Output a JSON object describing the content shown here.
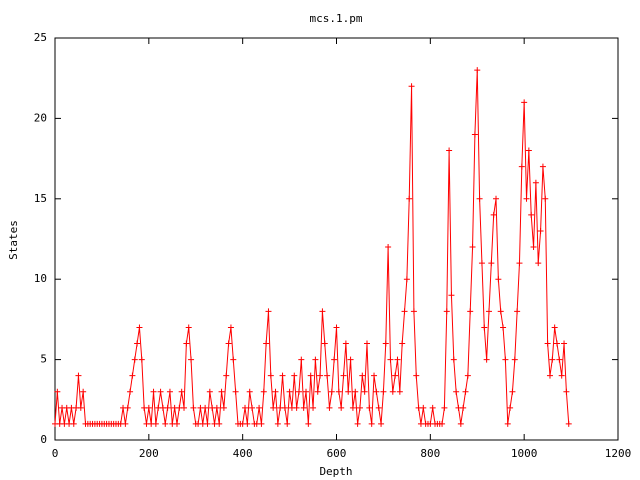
{
  "chart_data": {
    "type": "line",
    "title": "mcs.1.pm",
    "xlabel": "Depth",
    "ylabel": "States",
    "xlim": [
      0,
      1200
    ],
    "xticks": [
      0,
      200,
      400,
      600,
      800,
      1000,
      1200
    ],
    "ylim": [
      0,
      25
    ],
    "yticks": [
      0,
      5,
      10,
      15,
      20,
      25
    ],
    "series": [
      {
        "color": "#ff0000",
        "x": [
          0,
          5,
          10,
          15,
          20,
          25,
          30,
          35,
          40,
          45,
          50,
          55,
          60,
          65,
          70,
          75,
          80,
          85,
          90,
          95,
          100,
          105,
          110,
          115,
          120,
          125,
          130,
          135,
          140,
          145,
          150,
          155,
          160,
          165,
          170,
          175,
          180,
          185,
          190,
          195,
          200,
          205,
          210,
          215,
          220,
          225,
          230,
          235,
          240,
          245,
          250,
          255,
          260,
          265,
          270,
          275,
          280,
          285,
          290,
          295,
          300,
          305,
          310,
          315,
          320,
          325,
          330,
          335,
          340,
          345,
          350,
          355,
          360,
          365,
          370,
          375,
          380,
          385,
          390,
          395,
          400,
          405,
          410,
          415,
          420,
          425,
          430,
          435,
          440,
          445,
          450,
          455,
          460,
          465,
          470,
          475,
          480,
          485,
          490,
          495,
          500,
          505,
          510,
          515,
          520,
          525,
          530,
          535,
          540,
          545,
          550,
          555,
          560,
          565,
          570,
          575,
          580,
          585,
          590,
          595,
          600,
          605,
          610,
          615,
          620,
          625,
          630,
          635,
          640,
          645,
          650,
          655,
          660,
          665,
          670,
          675,
          680,
          685,
          690,
          695,
          700,
          705,
          710,
          715,
          720,
          725,
          730,
          735,
          740,
          745,
          750,
          755,
          760,
          765,
          770,
          775,
          780,
          785,
          790,
          795,
          800,
          805,
          810,
          815,
          820,
          825,
          830,
          835,
          840,
          845,
          850,
          855,
          860,
          865,
          870,
          875,
          880,
          885,
          890,
          895,
          900,
          905,
          910,
          915,
          920,
          925,
          930,
          935,
          940,
          945,
          950,
          955,
          960,
          965,
          970,
          975,
          980,
          985,
          990,
          995,
          1000,
          1005,
          1010,
          1015,
          1020,
          1025,
          1030,
          1035,
          1040,
          1045,
          1050,
          1055,
          1060,
          1065,
          1070,
          1075,
          1080,
          1085,
          1090,
          1095
        ],
        "values": [
          1,
          3,
          1,
          2,
          1,
          2,
          1,
          2,
          1,
          2,
          4,
          2,
          3,
          1,
          1,
          1,
          1,
          1,
          1,
          1,
          1,
          1,
          1,
          1,
          1,
          1,
          1,
          1,
          1,
          2,
          1,
          2,
          3,
          4,
          5,
          6,
          7,
          5,
          2,
          1,
          2,
          1,
          3,
          1,
          2,
          3,
          2,
          1,
          2,
          3,
          1,
          2,
          1,
          2,
          3,
          2,
          6,
          7,
          5,
          2,
          1,
          1,
          2,
          1,
          2,
          1,
          3,
          2,
          1,
          2,
          1,
          3,
          2,
          4,
          6,
          7,
          5,
          3,
          1,
          1,
          1,
          2,
          1,
          3,
          2,
          1,
          1,
          2,
          1,
          3,
          6,
          8,
          4,
          2,
          3,
          1,
          2,
          4,
          2,
          1,
          3,
          2,
          4,
          2,
          3,
          5,
          2,
          3,
          1,
          4,
          2,
          5,
          3,
          4,
          8,
          6,
          4,
          2,
          3,
          5,
          7,
          3,
          2,
          4,
          6,
          3,
          5,
          2,
          3,
          1,
          2,
          4,
          3,
          6,
          2,
          1,
          4,
          3,
          2,
          1,
          3,
          6,
          12,
          5,
          3,
          4,
          5,
          3,
          6,
          8,
          10,
          15,
          22,
          8,
          4,
          2,
          1,
          2,
          1,
          1,
          1,
          2,
          1,
          1,
          1,
          1,
          2,
          8,
          18,
          9,
          5,
          3,
          2,
          1,
          2,
          3,
          4,
          8,
          12,
          19,
          23,
          15,
          11,
          7,
          5,
          8,
          11,
          14,
          15,
          10,
          8,
          7,
          5,
          1,
          2,
          3,
          5,
          8,
          11,
          17,
          21,
          15,
          18,
          14,
          12,
          16,
          11,
          13,
          17,
          15,
          6,
          4,
          5,
          7,
          6,
          5,
          4,
          6,
          3,
          1
        ]
      }
    ]
  }
}
